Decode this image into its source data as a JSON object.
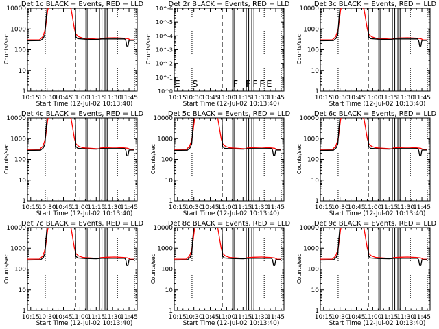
{
  "chart_data": {
    "type": "line",
    "grid": "3x3",
    "xlabel": "Start Time (12-Jul-02 10:13:40)",
    "ylabel": "Counts/sec",
    "x_units": "minutes after 10:00",
    "xlim": [
      12,
      112.5
    ],
    "xticks": [
      15,
      30,
      45,
      60,
      75,
      90,
      105
    ],
    "xtick_labels": [
      "10:15",
      "10:30",
      "10:45",
      "11:00",
      "11:15",
      "11:30",
      "11:45"
    ],
    "ylim": [
      1,
      10000
    ],
    "yscale": "log",
    "ytick_labels": [
      "1",
      "10",
      "100",
      "1000",
      "10000"
    ],
    "vlines": [
      {
        "x": 28.3,
        "style": "dotted"
      },
      {
        "x": 56,
        "style": "dashed"
      },
      {
        "x": 65.5,
        "style": "solid"
      },
      {
        "x": 66.7,
        "style": "solid"
      },
      {
        "x": 78,
        "style": "solid"
      },
      {
        "x": 80.2,
        "style": "solid"
      },
      {
        "x": 83,
        "style": "solid"
      },
      {
        "x": 85,
        "style": "solid"
      },
      {
        "x": 94.4,
        "style": "dotted"
      },
      {
        "x": 110,
        "style": "dotted"
      }
    ],
    "series": [
      {
        "name": "Events",
        "color": "#000000",
        "points": [
          [
            12,
            270
          ],
          [
            24,
            275
          ],
          [
            26.5,
            360
          ],
          [
            28,
            550
          ],
          [
            28.3,
            900
          ],
          [
            29,
            3000
          ],
          [
            30,
            12000
          ],
          [
            55.8,
            12000
          ],
          [
            56.2,
            420
          ],
          [
            58,
            340
          ],
          [
            65,
            320
          ],
          [
            75,
            310
          ],
          [
            80,
            330
          ],
          [
            90,
            330
          ],
          [
            101,
            330
          ],
          [
            102,
            280
          ],
          [
            103,
            150
          ],
          [
            104,
            150
          ],
          [
            105,
            280
          ],
          [
            110,
            280
          ]
        ]
      },
      {
        "name": "LLD",
        "color": "#ff0000",
        "points": [
          [
            12,
            300
          ],
          [
            23,
            300
          ],
          [
            26,
            420
          ],
          [
            27.5,
            700
          ],
          [
            28.6,
            1200
          ],
          [
            29.5,
            3000
          ],
          [
            30.5,
            8000
          ],
          [
            31.5,
            12000
          ],
          [
            50,
            12000
          ],
          [
            52,
            9000
          ],
          [
            53.5,
            3000
          ],
          [
            55,
            1000
          ],
          [
            56.5,
            550
          ],
          [
            59,
            420
          ],
          [
            63,
            360
          ],
          [
            70,
            340
          ],
          [
            77,
            320
          ],
          [
            79,
            355
          ],
          [
            85,
            370
          ],
          [
            92,
            380
          ],
          [
            100,
            360
          ],
          [
            104,
            340
          ],
          [
            106,
            300
          ],
          [
            110,
            295
          ]
        ]
      }
    ],
    "panels": [
      {
        "title": "Det 1c BLACK = Events, RED = LLD",
        "has_data": true
      },
      {
        "title": "Det 2r BLACK = Events, RED = LLD",
        "has_data": false,
        "ytick_labels": [
          "10^0",
          "10^-1",
          "10^-2",
          "10^-3",
          "10^-4",
          "10^-5",
          "10^-6"
        ],
        "annotations": [
          {
            "x": 12.3,
            "text": "E"
          },
          {
            "x": 28.5,
            "text": "S"
          },
          {
            "x": 65.8,
            "text": "F"
          },
          {
            "x": 77.5,
            "text": "F"
          },
          {
            "x": 80,
            "text": "F"
          },
          {
            "x": 82.5,
            "text": "F"
          },
          {
            "x": 94.7,
            "text": "E"
          }
        ]
      },
      {
        "title": "Det 3c BLACK = Events, RED = LLD",
        "has_data": true
      },
      {
        "title": "Det 4c BLACK = Events, RED = LLD",
        "has_data": true
      },
      {
        "title": "Det 5c BLACK = Events, RED = LLD",
        "has_data": true
      },
      {
        "title": "Det 6c BLACK = Events, RED = LLD",
        "has_data": true
      },
      {
        "title": "Det 7c BLACK = Events, RED = LLD",
        "has_data": true
      },
      {
        "title": "Det 8c BLACK = Events, RED = LLD",
        "has_data": true
      },
      {
        "title": "Det 9c BLACK = Events, RED = LLD",
        "has_data": true
      }
    ]
  }
}
